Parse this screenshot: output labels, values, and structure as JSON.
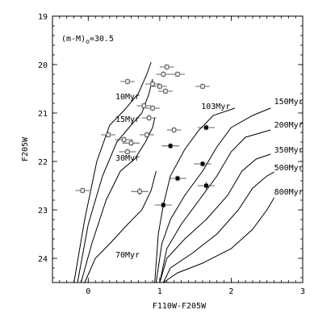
{
  "chart_data": {
    "type": "scatter",
    "annotation": "(m-M)",
    "annotation_sub": "o",
    "annotation_tail": "=30.5",
    "xlabel": "F110W-F205W",
    "ylabel": "F205W",
    "xlim": [
      -0.5,
      3.0
    ],
    "ylim": [
      24.5,
      19.0
    ],
    "y_inverted": true,
    "xticks": [
      0,
      1,
      2,
      3
    ],
    "yticks": [
      19,
      20,
      21,
      22,
      23,
      24
    ],
    "isochrones": [
      {
        "label": "10Myr",
        "label_at": [
          0.38,
          20.72
        ],
        "points": [
          [
            -0.2,
            24.5
          ],
          [
            -0.05,
            23.2
          ],
          [
            0.12,
            22.0
          ],
          [
            0.3,
            21.25
          ],
          [
            0.5,
            20.95
          ],
          [
            0.7,
            20.6
          ],
          [
            0.82,
            20.2
          ],
          [
            0.88,
            19.95
          ]
        ]
      },
      {
        "label": "15Myr",
        "label_at": [
          0.38,
          21.18
        ],
        "points": [
          [
            -0.15,
            24.5
          ],
          [
            0.0,
            23.3
          ],
          [
            0.2,
            22.3
          ],
          [
            0.4,
            21.6
          ],
          [
            0.6,
            21.25
          ],
          [
            0.75,
            21.0
          ],
          [
            0.85,
            20.6
          ],
          [
            0.9,
            20.3
          ]
        ]
      },
      {
        "label": "30Myr",
        "label_at": [
          0.38,
          21.98
        ],
        "points": [
          [
            -0.1,
            24.5
          ],
          [
            0.05,
            23.7
          ],
          [
            0.25,
            22.8
          ],
          [
            0.45,
            22.2
          ],
          [
            0.65,
            21.95
          ],
          [
            0.8,
            21.6
          ],
          [
            0.9,
            21.3
          ],
          [
            0.93,
            21.1
          ]
        ]
      },
      {
        "label": "70Myr",
        "label_at": [
          0.38,
          23.98
        ],
        "points": [
          [
            -0.05,
            24.5
          ],
          [
            0.1,
            24.0
          ],
          [
            0.3,
            23.7
          ],
          [
            0.55,
            23.3
          ],
          [
            0.75,
            23.0
          ],
          [
            0.88,
            22.6
          ],
          [
            0.95,
            22.2
          ]
        ]
      },
      {
        "label": "103Myr",
        "label_at": [
          1.58,
          20.92
        ],
        "points": [
          [
            0.93,
            24.5
          ],
          [
            0.98,
            23.5
          ],
          [
            1.05,
            22.9
          ],
          [
            1.15,
            22.3
          ],
          [
            1.35,
            21.75
          ],
          [
            1.55,
            21.35
          ],
          [
            1.75,
            21.05
          ],
          [
            2.05,
            20.9
          ]
        ]
      },
      {
        "label": "150Myr",
        "label_at": [
          2.6,
          20.82
        ],
        "points": [
          [
            0.95,
            24.5
          ],
          [
            1.03,
            23.7
          ],
          [
            1.15,
            23.2
          ],
          [
            1.35,
            22.7
          ],
          [
            1.6,
            22.2
          ],
          [
            1.8,
            21.7
          ],
          [
            2.0,
            21.3
          ],
          [
            2.3,
            21.05
          ],
          [
            2.55,
            20.9
          ]
        ]
      },
      {
        "label": "200Myr",
        "label_at": [
          2.6,
          21.3
        ],
        "points": [
          [
            1.0,
            24.5
          ],
          [
            1.1,
            23.8
          ],
          [
            1.3,
            23.3
          ],
          [
            1.55,
            22.8
          ],
          [
            1.8,
            22.3
          ],
          [
            2.0,
            21.8
          ],
          [
            2.2,
            21.5
          ],
          [
            2.55,
            21.35
          ]
        ]
      },
      {
        "label": "350Myr",
        "label_at": [
          2.6,
          21.82
        ],
        "points": [
          [
            1.0,
            24.5
          ],
          [
            1.1,
            24.0
          ],
          [
            1.35,
            23.6
          ],
          [
            1.65,
            23.2
          ],
          [
            1.95,
            22.7
          ],
          [
            2.15,
            22.2
          ],
          [
            2.35,
            21.95
          ],
          [
            2.55,
            21.85
          ]
        ]
      },
      {
        "label": "500Myr",
        "label_at": [
          2.6,
          22.18
        ],
        "points": [
          [
            1.05,
            24.5
          ],
          [
            1.15,
            24.2
          ],
          [
            1.45,
            23.9
          ],
          [
            1.8,
            23.5
          ],
          [
            2.1,
            23.0
          ],
          [
            2.3,
            22.55
          ],
          [
            2.5,
            22.3
          ],
          [
            2.6,
            22.22
          ]
        ]
      },
      {
        "label": "800Myr",
        "label_at": [
          2.6,
          22.68
        ],
        "points": [
          [
            1.05,
            24.5
          ],
          [
            1.25,
            24.3
          ],
          [
            1.6,
            24.1
          ],
          [
            2.0,
            23.8
          ],
          [
            2.3,
            23.4
          ],
          [
            2.5,
            23.0
          ],
          [
            2.6,
            22.75
          ]
        ]
      }
    ],
    "series": [
      {
        "name": "open",
        "marker": "open-square",
        "points": [
          {
            "x": 1.1,
            "y": 20.05,
            "xerr": 0.1,
            "yerr": 0.06
          },
          {
            "x": 1.05,
            "y": 20.2,
            "xerr": 0.1,
            "yerr": 0.06
          },
          {
            "x": 1.25,
            "y": 20.2,
            "xerr": 0.1,
            "yerr": 0.06
          },
          {
            "x": 0.9,
            "y": 20.4,
            "xerr": 0.1,
            "yerr": 0.06
          },
          {
            "x": 1.0,
            "y": 20.45,
            "xerr": 0.1,
            "yerr": 0.06
          },
          {
            "x": 1.08,
            "y": 20.55,
            "xerr": 0.1,
            "yerr": 0.06
          },
          {
            "x": 1.6,
            "y": 20.45,
            "xerr": 0.1,
            "yerr": 0.06
          },
          {
            "x": 0.55,
            "y": 20.35,
            "xerr": 0.1,
            "yerr": 0.06
          },
          {
            "x": 0.78,
            "y": 20.85,
            "xerr": 0.1,
            "yerr": 0.06
          },
          {
            "x": 0.9,
            "y": 20.9,
            "xerr": 0.1,
            "yerr": 0.06
          },
          {
            "x": 0.85,
            "y": 21.1,
            "xerr": 0.1,
            "yerr": 0.06
          },
          {
            "x": 0.28,
            "y": 21.45,
            "xerr": 0.1,
            "yerr": 0.06
          },
          {
            "x": 0.5,
            "y": 21.55,
            "xerr": 0.12,
            "yerr": 0.06
          },
          {
            "x": 0.6,
            "y": 21.62,
            "xerr": 0.12,
            "yerr": 0.06
          },
          {
            "x": 0.55,
            "y": 21.8,
            "xerr": 0.12,
            "yerr": 0.06
          },
          {
            "x": 0.82,
            "y": 21.45,
            "xerr": 0.1,
            "yerr": 0.06
          },
          {
            "x": 1.2,
            "y": 21.35,
            "xerr": 0.1,
            "yerr": 0.06
          },
          {
            "x": -0.08,
            "y": 22.6,
            "xerr": 0.1,
            "yerr": 0.06
          },
          {
            "x": 0.72,
            "y": 22.62,
            "xerr": 0.12,
            "yerr": 0.08
          }
        ]
      },
      {
        "name": "filled",
        "marker": "filled-square",
        "points": [
          {
            "x": 1.65,
            "y": 21.3,
            "xerr": 0.12,
            "yerr": 0.06
          },
          {
            "x": 1.15,
            "y": 21.68,
            "xerr": 0.12,
            "yerr": 0.06
          },
          {
            "x": 1.6,
            "y": 22.05,
            "xerr": 0.12,
            "yerr": 0.06
          },
          {
            "x": 1.25,
            "y": 22.35,
            "xerr": 0.12,
            "yerr": 0.06
          },
          {
            "x": 1.65,
            "y": 22.5,
            "xerr": 0.12,
            "yerr": 0.08
          },
          {
            "x": 1.05,
            "y": 22.9,
            "xerr": 0.12,
            "yerr": 0.06
          }
        ]
      }
    ]
  }
}
